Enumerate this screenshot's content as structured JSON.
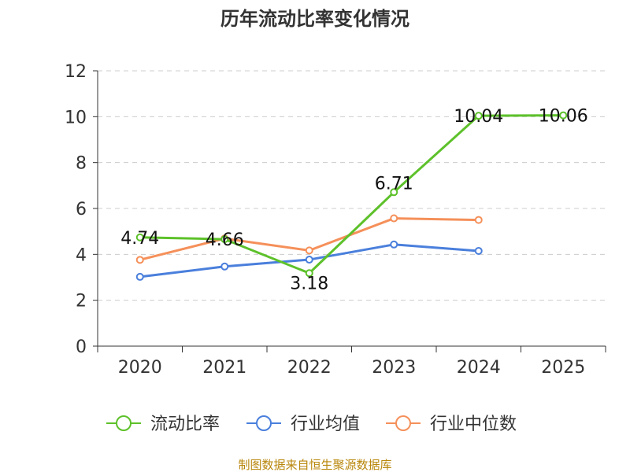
{
  "chart_data": {
    "type": "line",
    "title": "历年流动比率变化情况",
    "categories": [
      "2020",
      "2021",
      "2022",
      "2023",
      "2024",
      "2025"
    ],
    "ylim": [
      0,
      12
    ],
    "yticks": [
      0,
      2,
      4,
      6,
      8,
      10,
      12
    ],
    "grid": true,
    "legend_position": "bottom",
    "series": [
      {
        "name": "流动比率",
        "color": "#5dc12a",
        "values": [
          4.74,
          4.66,
          3.18,
          6.71,
          10.04,
          10.06
        ],
        "labels": [
          "4.74",
          "4.66",
          "3.18",
          "6.71",
          "10.04",
          "10.06"
        ]
      },
      {
        "name": "行业均值",
        "color": "#4a7fdc",
        "values": [
          3.02,
          3.47,
          3.77,
          4.43,
          4.15,
          null
        ]
      },
      {
        "name": "行业中位数",
        "color": "#f5905a",
        "values": [
          3.76,
          4.69,
          4.17,
          5.57,
          5.5,
          null
        ]
      }
    ]
  },
  "source": "制图数据来自恒生聚源数据库"
}
